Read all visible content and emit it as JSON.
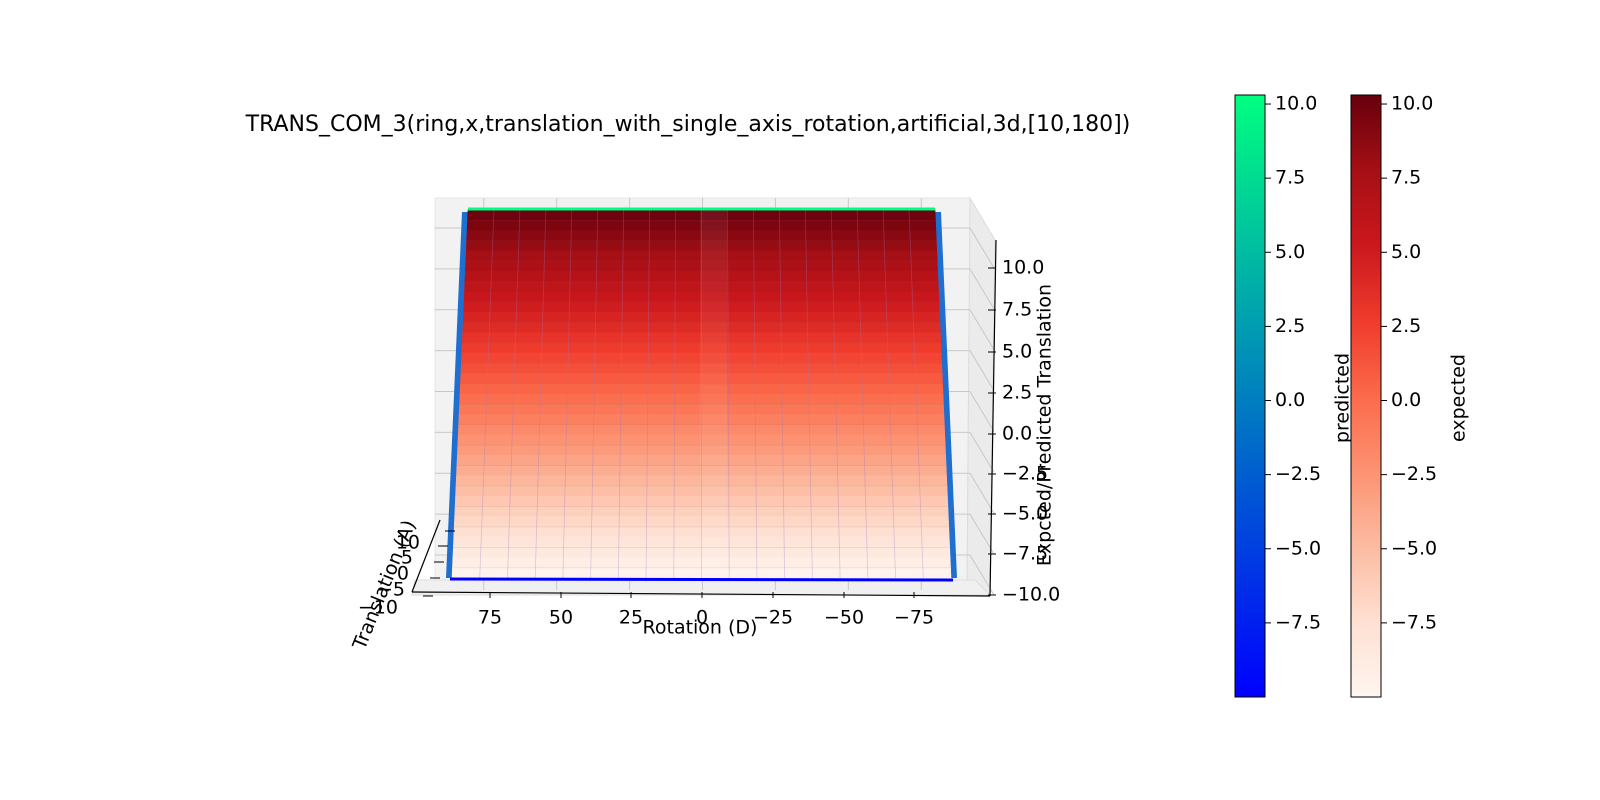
{
  "chart_data": {
    "type": "surface3d",
    "title": "TRANS_COM_3(ring,x,translation_with_single_axis_rotation,artificial,3d,[10,180])",
    "xlabel": "Rotation (D)",
    "ylabel": "Translation (A)",
    "zlabel": "Expcted/Predicted Translation",
    "x_ticks": [
      "75",
      "50",
      "25",
      "0",
      "−25",
      "−50",
      "−75"
    ],
    "x_tick_values": [
      75,
      50,
      25,
      0,
      -25,
      -50,
      -75
    ],
    "y_ticks": [
      "−10",
      "−5",
      "0",
      "5",
      "10"
    ],
    "y_tick_values": [
      -10,
      -5,
      0,
      5,
      10
    ],
    "z_ticks": [
      "−10.0",
      "−7.5",
      "−5.0",
      "−2.5",
      "0.0",
      "2.5",
      "5.0",
      "7.5",
      "10.0"
    ],
    "z_tick_values": [
      -10,
      -7.5,
      -5,
      -2.5,
      0,
      2.5,
      5,
      7.5,
      10
    ],
    "xlim": [
      90,
      -90
    ],
    "ylim": [
      -10,
      10
    ],
    "zlim": [
      -10,
      10
    ],
    "grid": true,
    "series": [
      {
        "name": "expected",
        "colormap": "Reds",
        "z_range": [
          -10,
          10
        ]
      },
      {
        "name": "predicted",
        "colormap": "winter",
        "z_range": [
          -10,
          10
        ]
      }
    ],
    "colorbars": [
      {
        "label": "predicted",
        "colormap": "winter",
        "ticks": [
          "−7.5",
          "−5.0",
          "−2.5",
          "0.0",
          "2.5",
          "5.0",
          "7.5",
          "10.0"
        ],
        "tick_values": [
          -7.5,
          -5,
          -2.5,
          0,
          2.5,
          5,
          7.5,
          10
        ],
        "range": [
          -10,
          10
        ]
      },
      {
        "label": "expected",
        "colormap": "Reds",
        "ticks": [
          "−7.5",
          "−5.0",
          "−2.5",
          "0.0",
          "2.5",
          "5.0",
          "7.5",
          "10.0"
        ],
        "tick_values": [
          -7.5,
          -5,
          -2.5,
          0,
          2.5,
          5,
          7.5,
          10
        ],
        "range": [
          -10,
          10
        ]
      }
    ],
    "colors": {
      "reds": [
        "#fff5f0",
        "#fee0d2",
        "#fcbba1",
        "#fc9272",
        "#fb6a4a",
        "#ef3b2c",
        "#cb181d",
        "#a50f15",
        "#67000d"
      ],
      "winter_low": "#0000ff",
      "winter_high": "#00ff80",
      "pane": "#f2f2f2",
      "grid": "#c8c8c8"
    }
  }
}
